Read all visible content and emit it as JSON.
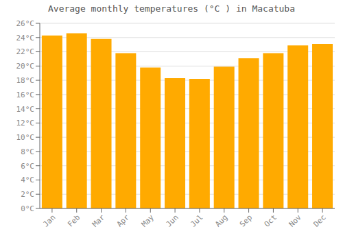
{
  "chart_data": {
    "type": "bar",
    "title": "Average monthly temperatures (°C ) in Macatuba",
    "categories": [
      "Jan",
      "Feb",
      "Mar",
      "Apr",
      "May",
      "Jun",
      "Jul",
      "Aug",
      "Sep",
      "Oct",
      "Nov",
      "Dec"
    ],
    "values": [
      24.3,
      24.6,
      23.8,
      21.8,
      19.8,
      18.3,
      18.2,
      19.9,
      21.1,
      21.8,
      22.9,
      23.1
    ],
    "color": "#FFAA00",
    "ylim": [
      0,
      26
    ],
    "yticks": [
      {
        "value": 0,
        "label": "0°C"
      },
      {
        "value": 2,
        "label": "2°C"
      },
      {
        "value": 4,
        "label": "4°C"
      },
      {
        "value": 6,
        "label": "6°C"
      },
      {
        "value": 8,
        "label": "8°C"
      },
      {
        "value": 10,
        "label": "10°C"
      },
      {
        "value": 12,
        "label": "12°C"
      },
      {
        "value": 14,
        "label": "14°C"
      },
      {
        "value": 16,
        "label": "16°C"
      },
      {
        "value": 18,
        "label": "18°C"
      },
      {
        "value": 20,
        "label": "20°C"
      },
      {
        "value": 22,
        "label": "22°C"
      },
      {
        "value": 24,
        "label": "24°C"
      },
      {
        "value": 26,
        "label": "26°C"
      }
    ],
    "grid": true
  }
}
